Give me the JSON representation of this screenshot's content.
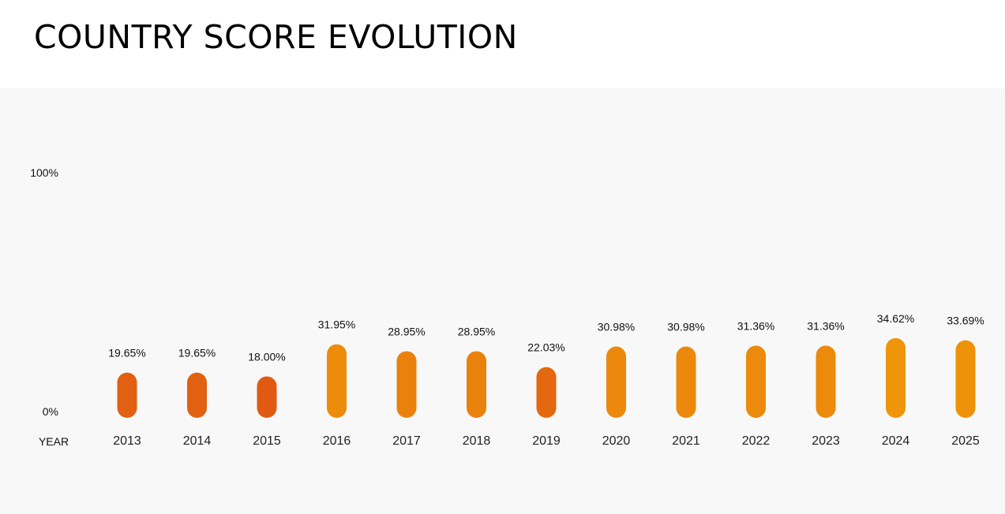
{
  "page": {
    "title": "COUNTRY SCORE EVOLUTION"
  },
  "chart_data": {
    "type": "bar",
    "title": "COUNTRY SCORE EVOLUTION",
    "xlabel": "YEAR",
    "ylabel": "",
    "ylim": [
      0,
      100
    ],
    "y_tick_labels": [
      "0%",
      "100%"
    ],
    "categories": [
      "2013",
      "2014",
      "2015",
      "2016",
      "2017",
      "2018",
      "2019",
      "2020",
      "2021",
      "2022",
      "2023",
      "2024",
      "2025"
    ],
    "values": [
      19.65,
      19.65,
      18.0,
      31.95,
      28.95,
      28.95,
      22.03,
      30.98,
      30.98,
      31.36,
      31.36,
      34.62,
      33.69
    ],
    "value_labels": [
      "19.65%",
      "19.65%",
      "18.00%",
      "31.95%",
      "28.95%",
      "28.95%",
      "22.03%",
      "30.98%",
      "30.98%",
      "31.36%",
      "31.36%",
      "34.62%",
      "33.69%"
    ],
    "grid": false,
    "legend": "none",
    "colors": {
      "scale_bottom": "#d01818",
      "scale_low": "#e05a12",
      "scale_mid": "#f09a08",
      "scale_yellow": "#c8d220",
      "scale_top": "#1a7038"
    }
  }
}
